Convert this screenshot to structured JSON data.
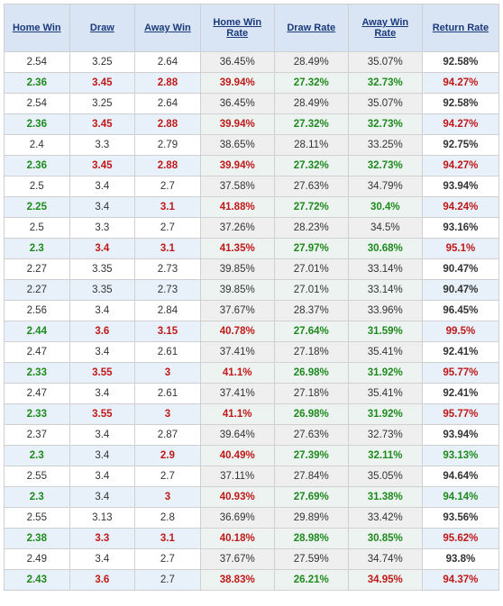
{
  "columns": [
    "Home Win",
    "Draw",
    "Away Win",
    "Home Win Rate",
    "Draw Rate",
    "Away Win Rate",
    "Return Rate"
  ],
  "rows": [
    {
      "alt": false,
      "cells": [
        {
          "v": "2.54"
        },
        {
          "v": "3.25"
        },
        {
          "v": "2.64"
        },
        {
          "v": "36.45%",
          "rate": true
        },
        {
          "v": "28.49%",
          "rate": true
        },
        {
          "v": "35.07%",
          "rate": true
        },
        {
          "v": "92.58%",
          "ret": true
        }
      ]
    },
    {
      "alt": true,
      "cells": [
        {
          "v": "2.36",
          "c": "green"
        },
        {
          "v": "3.45",
          "c": "red"
        },
        {
          "v": "2.88",
          "c": "red"
        },
        {
          "v": "39.94%",
          "rate": true,
          "c": "red"
        },
        {
          "v": "27.32%",
          "rate": true,
          "c": "green"
        },
        {
          "v": "32.73%",
          "rate": true,
          "c": "green"
        },
        {
          "v": "94.27%",
          "ret": true,
          "c": "red"
        }
      ]
    },
    {
      "alt": false,
      "cells": [
        {
          "v": "2.54"
        },
        {
          "v": "3.25"
        },
        {
          "v": "2.64"
        },
        {
          "v": "36.45%",
          "rate": true
        },
        {
          "v": "28.49%",
          "rate": true
        },
        {
          "v": "35.07%",
          "rate": true
        },
        {
          "v": "92.58%",
          "ret": true
        }
      ]
    },
    {
      "alt": true,
      "cells": [
        {
          "v": "2.36",
          "c": "green"
        },
        {
          "v": "3.45",
          "c": "red"
        },
        {
          "v": "2.88",
          "c": "red"
        },
        {
          "v": "39.94%",
          "rate": true,
          "c": "red"
        },
        {
          "v": "27.32%",
          "rate": true,
          "c": "green"
        },
        {
          "v": "32.73%",
          "rate": true,
          "c": "green"
        },
        {
          "v": "94.27%",
          "ret": true,
          "c": "red"
        }
      ]
    },
    {
      "alt": false,
      "cells": [
        {
          "v": "2.4"
        },
        {
          "v": "3.3"
        },
        {
          "v": "2.79"
        },
        {
          "v": "38.65%",
          "rate": true
        },
        {
          "v": "28.11%",
          "rate": true
        },
        {
          "v": "33.25%",
          "rate": true
        },
        {
          "v": "92.75%",
          "ret": true
        }
      ]
    },
    {
      "alt": true,
      "cells": [
        {
          "v": "2.36",
          "c": "green"
        },
        {
          "v": "3.45",
          "c": "red"
        },
        {
          "v": "2.88",
          "c": "red"
        },
        {
          "v": "39.94%",
          "rate": true,
          "c": "red"
        },
        {
          "v": "27.32%",
          "rate": true,
          "c": "green"
        },
        {
          "v": "32.73%",
          "rate": true,
          "c": "green"
        },
        {
          "v": "94.27%",
          "ret": true,
          "c": "red"
        }
      ]
    },
    {
      "alt": false,
      "cells": [
        {
          "v": "2.5"
        },
        {
          "v": "3.4"
        },
        {
          "v": "2.7"
        },
        {
          "v": "37.58%",
          "rate": true
        },
        {
          "v": "27.63%",
          "rate": true
        },
        {
          "v": "34.79%",
          "rate": true
        },
        {
          "v": "93.94%",
          "ret": true
        }
      ]
    },
    {
      "alt": true,
      "cells": [
        {
          "v": "2.25",
          "c": "green"
        },
        {
          "v": "3.4"
        },
        {
          "v": "3.1",
          "c": "red"
        },
        {
          "v": "41.88%",
          "rate": true,
          "c": "red"
        },
        {
          "v": "27.72%",
          "rate": true,
          "c": "green"
        },
        {
          "v": "30.4%",
          "rate": true,
          "c": "green"
        },
        {
          "v": "94.24%",
          "ret": true,
          "c": "red"
        }
      ]
    },
    {
      "alt": false,
      "cells": [
        {
          "v": "2.5"
        },
        {
          "v": "3.3"
        },
        {
          "v": "2.7"
        },
        {
          "v": "37.26%",
          "rate": true
        },
        {
          "v": "28.23%",
          "rate": true
        },
        {
          "v": "34.5%",
          "rate": true
        },
        {
          "v": "93.16%",
          "ret": true
        }
      ]
    },
    {
      "alt": true,
      "cells": [
        {
          "v": "2.3",
          "c": "green"
        },
        {
          "v": "3.4",
          "c": "red"
        },
        {
          "v": "3.1",
          "c": "red"
        },
        {
          "v": "41.35%",
          "rate": true,
          "c": "red"
        },
        {
          "v": "27.97%",
          "rate": true,
          "c": "green"
        },
        {
          "v": "30.68%",
          "rate": true,
          "c": "green"
        },
        {
          "v": "95.1%",
          "ret": true,
          "c": "red"
        }
      ]
    },
    {
      "alt": false,
      "cells": [
        {
          "v": "2.27"
        },
        {
          "v": "3.35"
        },
        {
          "v": "2.73"
        },
        {
          "v": "39.85%",
          "rate": true
        },
        {
          "v": "27.01%",
          "rate": true
        },
        {
          "v": "33.14%",
          "rate": true
        },
        {
          "v": "90.47%",
          "ret": true
        }
      ]
    },
    {
      "alt": true,
      "cells": [
        {
          "v": "2.27"
        },
        {
          "v": "3.35"
        },
        {
          "v": "2.73"
        },
        {
          "v": "39.85%",
          "rate": true
        },
        {
          "v": "27.01%",
          "rate": true
        },
        {
          "v": "33.14%",
          "rate": true
        },
        {
          "v": "90.47%",
          "ret": true
        }
      ]
    },
    {
      "alt": false,
      "cells": [
        {
          "v": "2.56"
        },
        {
          "v": "3.4"
        },
        {
          "v": "2.84"
        },
        {
          "v": "37.67%",
          "rate": true
        },
        {
          "v": "28.37%",
          "rate": true
        },
        {
          "v": "33.96%",
          "rate": true
        },
        {
          "v": "96.45%",
          "ret": true
        }
      ]
    },
    {
      "alt": true,
      "cells": [
        {
          "v": "2.44",
          "c": "green"
        },
        {
          "v": "3.6",
          "c": "red"
        },
        {
          "v": "3.15",
          "c": "red"
        },
        {
          "v": "40.78%",
          "rate": true,
          "c": "red"
        },
        {
          "v": "27.64%",
          "rate": true,
          "c": "green"
        },
        {
          "v": "31.59%",
          "rate": true,
          "c": "green"
        },
        {
          "v": "99.5%",
          "ret": true,
          "c": "red"
        }
      ]
    },
    {
      "alt": false,
      "cells": [
        {
          "v": "2.47"
        },
        {
          "v": "3.4"
        },
        {
          "v": "2.61"
        },
        {
          "v": "37.41%",
          "rate": true
        },
        {
          "v": "27.18%",
          "rate": true
        },
        {
          "v": "35.41%",
          "rate": true
        },
        {
          "v": "92.41%",
          "ret": true
        }
      ]
    },
    {
      "alt": true,
      "cells": [
        {
          "v": "2.33",
          "c": "green"
        },
        {
          "v": "3.55",
          "c": "red"
        },
        {
          "v": "3",
          "c": "red"
        },
        {
          "v": "41.1%",
          "rate": true,
          "c": "red"
        },
        {
          "v": "26.98%",
          "rate": true,
          "c": "green"
        },
        {
          "v": "31.92%",
          "rate": true,
          "c": "green"
        },
        {
          "v": "95.77%",
          "ret": true,
          "c": "red"
        }
      ]
    },
    {
      "alt": false,
      "cells": [
        {
          "v": "2.47"
        },
        {
          "v": "3.4"
        },
        {
          "v": "2.61"
        },
        {
          "v": "37.41%",
          "rate": true
        },
        {
          "v": "27.18%",
          "rate": true
        },
        {
          "v": "35.41%",
          "rate": true
        },
        {
          "v": "92.41%",
          "ret": true
        }
      ]
    },
    {
      "alt": true,
      "cells": [
        {
          "v": "2.33",
          "c": "green"
        },
        {
          "v": "3.55",
          "c": "red"
        },
        {
          "v": "3",
          "c": "red"
        },
        {
          "v": "41.1%",
          "rate": true,
          "c": "red"
        },
        {
          "v": "26.98%",
          "rate": true,
          "c": "green"
        },
        {
          "v": "31.92%",
          "rate": true,
          "c": "green"
        },
        {
          "v": "95.77%",
          "ret": true,
          "c": "red"
        }
      ]
    },
    {
      "alt": false,
      "cells": [
        {
          "v": "2.37"
        },
        {
          "v": "3.4"
        },
        {
          "v": "2.87"
        },
        {
          "v": "39.64%",
          "rate": true
        },
        {
          "v": "27.63%",
          "rate": true
        },
        {
          "v": "32.73%",
          "rate": true
        },
        {
          "v": "93.94%",
          "ret": true
        }
      ]
    },
    {
      "alt": true,
      "cells": [
        {
          "v": "2.3",
          "c": "green"
        },
        {
          "v": "3.4"
        },
        {
          "v": "2.9",
          "c": "red"
        },
        {
          "v": "40.49%",
          "rate": true,
          "c": "red"
        },
        {
          "v": "27.39%",
          "rate": true,
          "c": "green"
        },
        {
          "v": "32.11%",
          "rate": true,
          "c": "green"
        },
        {
          "v": "93.13%",
          "ret": true,
          "c": "green"
        }
      ]
    },
    {
      "alt": false,
      "cells": [
        {
          "v": "2.55"
        },
        {
          "v": "3.4"
        },
        {
          "v": "2.7"
        },
        {
          "v": "37.11%",
          "rate": true
        },
        {
          "v": "27.84%",
          "rate": true
        },
        {
          "v": "35.05%",
          "rate": true
        },
        {
          "v": "94.64%",
          "ret": true
        }
      ]
    },
    {
      "alt": true,
      "cells": [
        {
          "v": "2.3",
          "c": "green"
        },
        {
          "v": "3.4"
        },
        {
          "v": "3",
          "c": "red"
        },
        {
          "v": "40.93%",
          "rate": true,
          "c": "red"
        },
        {
          "v": "27.69%",
          "rate": true,
          "c": "green"
        },
        {
          "v": "31.38%",
          "rate": true,
          "c": "green"
        },
        {
          "v": "94.14%",
          "ret": true,
          "c": "green"
        }
      ]
    },
    {
      "alt": false,
      "cells": [
        {
          "v": "2.55"
        },
        {
          "v": "3.13"
        },
        {
          "v": "2.8"
        },
        {
          "v": "36.69%",
          "rate": true
        },
        {
          "v": "29.89%",
          "rate": true
        },
        {
          "v": "33.42%",
          "rate": true
        },
        {
          "v": "93.56%",
          "ret": true
        }
      ]
    },
    {
      "alt": true,
      "cells": [
        {
          "v": "2.38",
          "c": "green"
        },
        {
          "v": "3.3",
          "c": "red"
        },
        {
          "v": "3.1",
          "c": "red"
        },
        {
          "v": "40.18%",
          "rate": true,
          "c": "red"
        },
        {
          "v": "28.98%",
          "rate": true,
          "c": "green"
        },
        {
          "v": "30.85%",
          "rate": true,
          "c": "green"
        },
        {
          "v": "95.62%",
          "ret": true,
          "c": "red"
        }
      ]
    },
    {
      "alt": false,
      "cells": [
        {
          "v": "2.49"
        },
        {
          "v": "3.4"
        },
        {
          "v": "2.7"
        },
        {
          "v": "37.67%",
          "rate": true
        },
        {
          "v": "27.59%",
          "rate": true
        },
        {
          "v": "34.74%",
          "rate": true
        },
        {
          "v": "93.8%",
          "ret": true
        }
      ]
    },
    {
      "alt": true,
      "cells": [
        {
          "v": "2.43",
          "c": "green"
        },
        {
          "v": "3.6",
          "c": "red"
        },
        {
          "v": "2.7"
        },
        {
          "v": "38.83%",
          "rate": true,
          "c": "red"
        },
        {
          "v": "26.21%",
          "rate": true,
          "c": "green"
        },
        {
          "v": "34.95%",
          "rate": true,
          "c": "red"
        },
        {
          "v": "94.37%",
          "ret": true,
          "c": "red"
        }
      ]
    }
  ]
}
